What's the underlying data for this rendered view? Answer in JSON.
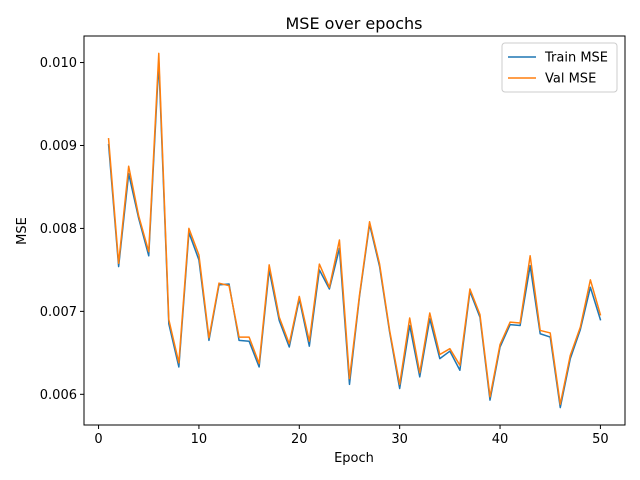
{
  "chart_data": {
    "type": "line",
    "title": "MSE over epochs",
    "xlabel": "Epoch",
    "ylabel": "MSE",
    "xlim": [
      -1.45,
      52.45
    ],
    "ylim": [
      0.00563,
      0.01032
    ],
    "xticks": [
      0,
      10,
      20,
      30,
      40,
      50
    ],
    "xtick_labels": [
      "0",
      "10",
      "20",
      "30",
      "40",
      "50"
    ],
    "yticks": [
      0.006,
      0.007,
      0.008,
      0.009,
      0.01
    ],
    "ytick_labels": [
      "0.006",
      "0.007",
      "0.008",
      "0.009",
      "0.010"
    ],
    "grid": false,
    "legend": "top-right",
    "x": [
      1,
      2,
      3,
      4,
      5,
      6,
      7,
      8,
      9,
      10,
      11,
      12,
      13,
      14,
      15,
      16,
      17,
      18,
      19,
      20,
      21,
      22,
      23,
      24,
      25,
      26,
      27,
      28,
      29,
      30,
      31,
      32,
      33,
      34,
      35,
      36,
      37,
      38,
      39,
      40,
      41,
      42,
      43,
      44,
      45,
      46,
      47,
      48,
      49,
      50
    ],
    "series": [
      {
        "name": "Train MSE",
        "color": "#1f77b4",
        "values": [
          0.00901,
          0.00754,
          0.00866,
          0.00812,
          0.00767,
          0.01001,
          0.00685,
          0.00633,
          0.00795,
          0.00762,
          0.00665,
          0.00732,
          0.00733,
          0.00665,
          0.00664,
          0.00633,
          0.0075,
          0.00689,
          0.00657,
          0.00715,
          0.00658,
          0.0075,
          0.00727,
          0.00776,
          0.00612,
          0.00718,
          0.00805,
          0.00754,
          0.00675,
          0.00607,
          0.00683,
          0.00621,
          0.00691,
          0.00643,
          0.00652,
          0.00629,
          0.00724,
          0.00693,
          0.00593,
          0.00657,
          0.00684,
          0.00683,
          0.00755,
          0.00673,
          0.00669,
          0.00584,
          0.00643,
          0.00678,
          0.00729,
          0.0069
        ]
      },
      {
        "name": "Val MSE",
        "color": "#ff7f0e",
        "values": [
          0.00908,
          0.00758,
          0.00875,
          0.00815,
          0.00772,
          0.01011,
          0.0069,
          0.00638,
          0.008,
          0.00768,
          0.00668,
          0.00734,
          0.00731,
          0.00669,
          0.00669,
          0.00637,
          0.00756,
          0.00693,
          0.00661,
          0.00718,
          0.00664,
          0.00757,
          0.00729,
          0.00786,
          0.00619,
          0.0072,
          0.00808,
          0.00757,
          0.00677,
          0.00612,
          0.00692,
          0.00626,
          0.00698,
          0.00648,
          0.00655,
          0.00635,
          0.00727,
          0.00696,
          0.00597,
          0.0066,
          0.00687,
          0.00686,
          0.00767,
          0.00677,
          0.00674,
          0.00588,
          0.00647,
          0.00681,
          0.00738,
          0.00696
        ]
      }
    ]
  }
}
